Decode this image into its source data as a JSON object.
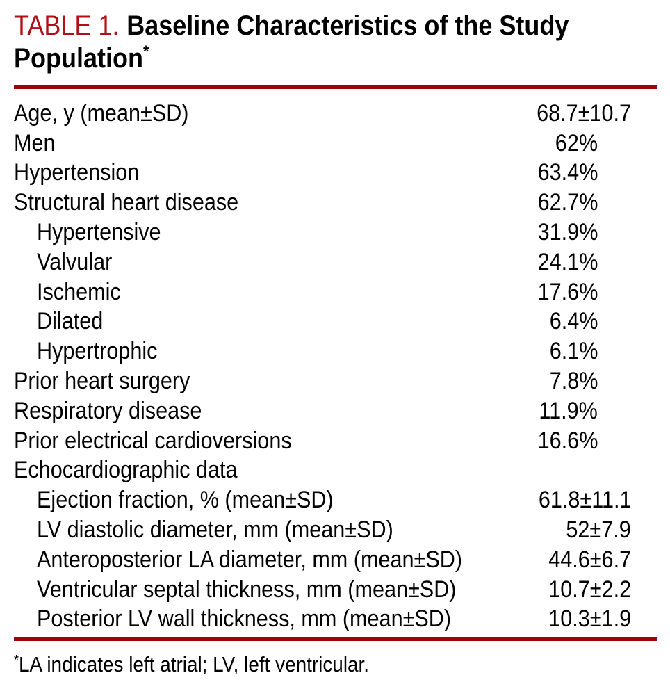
{
  "header": {
    "table_label": "TABLE 1.",
    "title_line1": "Baseline Characteristics of the Study",
    "title_line2": "Population",
    "footnote_marker": "*"
  },
  "table": {
    "rows": [
      {
        "label": "Age, y (mean±SD)",
        "value": "68.7±10.7",
        "indent": false,
        "unit": "mean_sd"
      },
      {
        "label": "Men",
        "value": "62%",
        "indent": false,
        "unit": "percent"
      },
      {
        "label": "Hypertension",
        "value": "63.4%",
        "indent": false,
        "unit": "percent"
      },
      {
        "label": "Structural heart disease",
        "value": "62.7%",
        "indent": false,
        "unit": "percent"
      },
      {
        "label": "Hypertensive",
        "value": "31.9%",
        "indent": true,
        "unit": "percent"
      },
      {
        "label": "Valvular",
        "value": "24.1%",
        "indent": true,
        "unit": "percent"
      },
      {
        "label": "Ischemic",
        "value": "17.6%",
        "indent": true,
        "unit": "percent"
      },
      {
        "label": "Dilated",
        "value": "6.4%",
        "indent": true,
        "unit": "percent"
      },
      {
        "label": "Hypertrophic",
        "value": "6.1%",
        "indent": true,
        "unit": "percent"
      },
      {
        "label": "Prior heart surgery",
        "value": "7.8%",
        "indent": false,
        "unit": "percent"
      },
      {
        "label": "Respiratory disease",
        "value": "11.9%",
        "indent": false,
        "unit": "percent"
      },
      {
        "label": "Prior electrical cardioversions",
        "value": "16.6%",
        "indent": false,
        "unit": "percent"
      },
      {
        "label": "Echocardiographic data",
        "value": "",
        "indent": false,
        "unit": "none"
      },
      {
        "label": "Ejection fraction, % (mean±SD)",
        "value": "61.8±11.1",
        "indent": true,
        "unit": "mean_sd"
      },
      {
        "label": "LV diastolic diameter, mm (mean±SD)",
        "value": "52±7.9",
        "indent": true,
        "unit": "mean_sd"
      },
      {
        "label": "Anteroposterior LA diameter, mm (mean±SD)",
        "value": "44.6±6.7",
        "indent": true,
        "unit": "mean_sd"
      },
      {
        "label": "Ventricular septal thickness, mm (mean±SD)",
        "value": "10.7±2.2",
        "indent": true,
        "unit": "mean_sd"
      },
      {
        "label": "Posterior LV wall thickness, mm (mean±SD)",
        "value": "10.3±1.9",
        "indent": true,
        "unit": "mean_sd"
      }
    ]
  },
  "footnote": {
    "marker": "*",
    "text": "LA indicates left atrial; LV, left ventricular."
  },
  "colors": {
    "accent_red": "#b01015",
    "rule_red": "#9a040c",
    "text_black": "#000000",
    "background": "#ffffff"
  }
}
